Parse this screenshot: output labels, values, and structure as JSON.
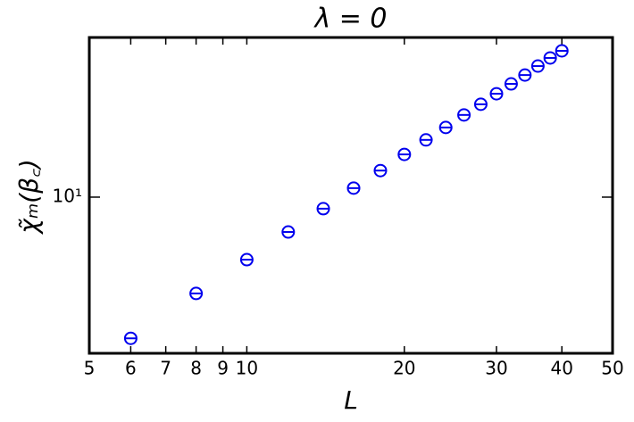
{
  "chart_data": {
    "type": "scatter",
    "title": "λ = 0",
    "xlabel": "L",
    "ylabel": "χ̃ₘ(β꜀)",
    "x": [
      6,
      8,
      10,
      12,
      14,
      16,
      18,
      20,
      22,
      24,
      26,
      28,
      30,
      32,
      34,
      36,
      38,
      40
    ],
    "series": [
      {
        "color": "#0000ee",
        "values": [
          1.95,
          3.28,
          4.85,
          6.68,
          8.75,
          11.1,
          13.6,
          16.4,
          19.4,
          22.4,
          25.9,
          29.3,
          33.1,
          37.1,
          41.1,
          45.6,
          50.1,
          54.4
        ]
      }
    ],
    "xlim": [
      5,
      50
    ],
    "xticks": [
      5,
      6,
      7,
      8,
      9,
      10,
      20,
      30,
      40,
      50
    ],
    "ylim": [
      1.64,
      63.5
    ],
    "yticks": [
      {
        "value": 10,
        "label": "10¹"
      }
    ],
    "xscale": "log",
    "yscale": "log"
  }
}
